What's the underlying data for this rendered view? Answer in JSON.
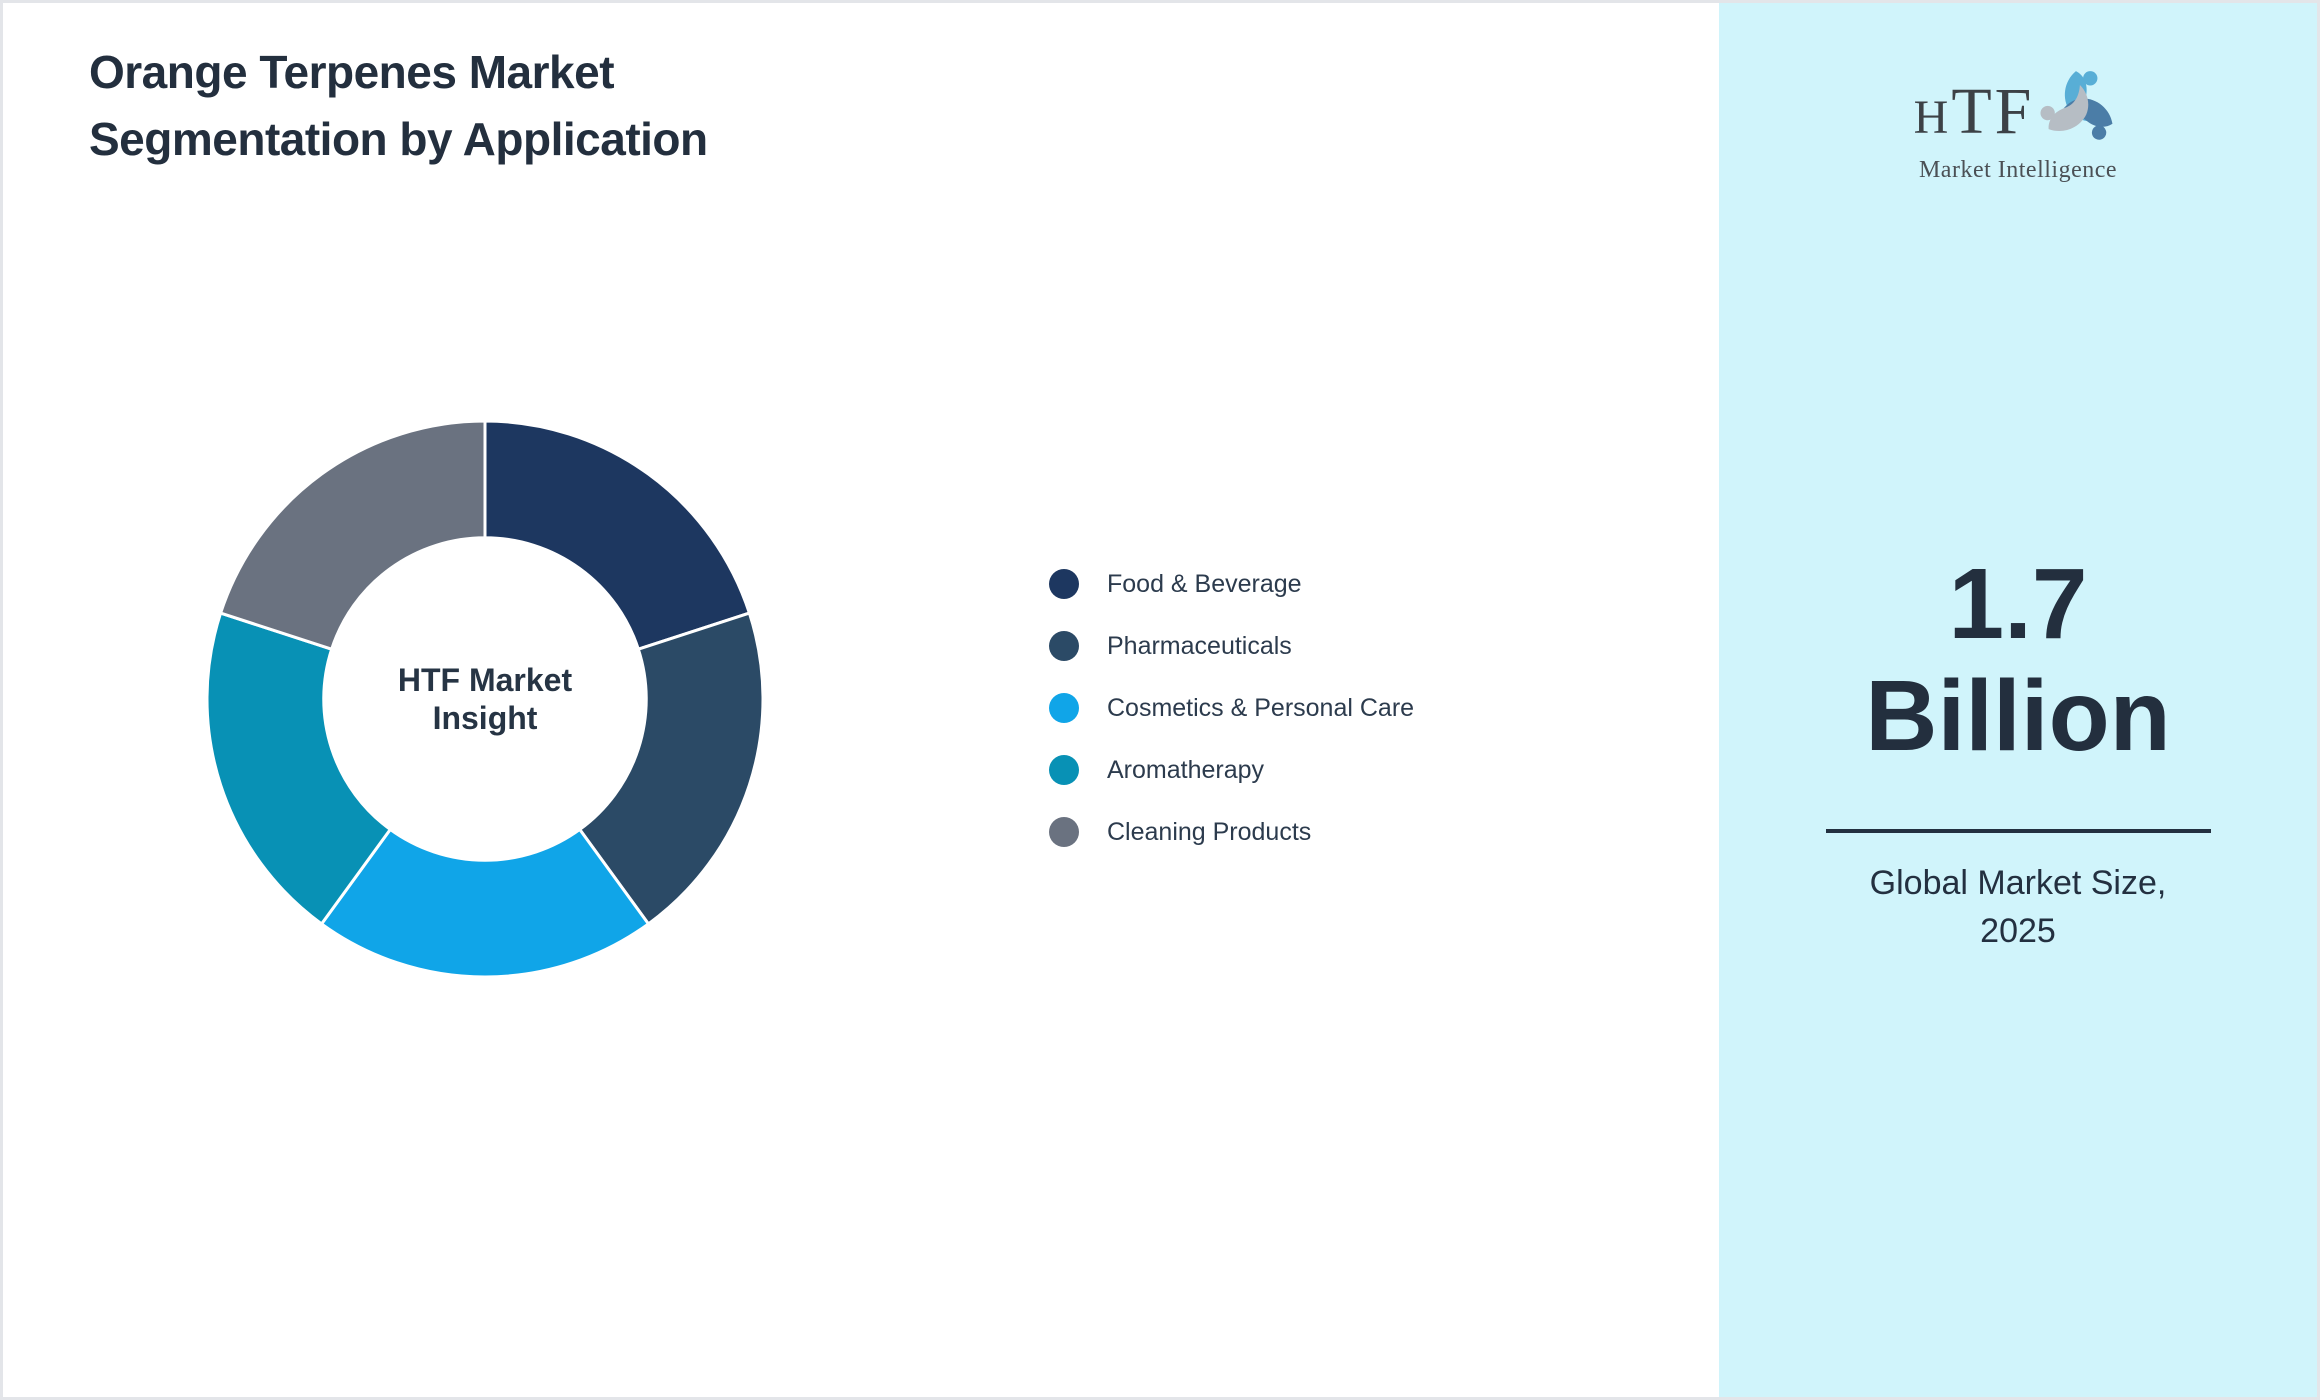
{
  "header": {
    "title_line1": "Orange Terpenes Market",
    "title_line2": "Segmentation by Application"
  },
  "chart_data": {
    "type": "pie",
    "subtype": "donut",
    "title": "Orange Terpenes Market Segmentation by Application",
    "categories": [
      "Food & Beverage",
      "Pharmaceuticals",
      "Cosmetics & Personal Care",
      "Aromatherapy",
      "Cleaning Products"
    ],
    "values": [
      20,
      20,
      20,
      20,
      20
    ],
    "value_labels_shown": false,
    "colors": [
      "#1d3760",
      "#2b4a66",
      "#10a5e8",
      "#0891b5",
      "#6a7280"
    ],
    "slice_gap_color": "#ffffff",
    "start_angle_deg": 0,
    "direction": "clockwise",
    "inner_radius_ratio": 0.58,
    "legend_position": "right",
    "center_label": [
      "HTF Market",
      "Insight"
    ]
  },
  "sidebar": {
    "background_color": "#d0f4fb",
    "logo": {
      "brand_h": "H",
      "brand_tf": "TF",
      "tagline": "Market Intelligence"
    },
    "stat": {
      "value_line1": "1.7",
      "value_line2": "Billion",
      "caption_line1": "Global Market Size,",
      "caption_line2": "2025"
    }
  }
}
